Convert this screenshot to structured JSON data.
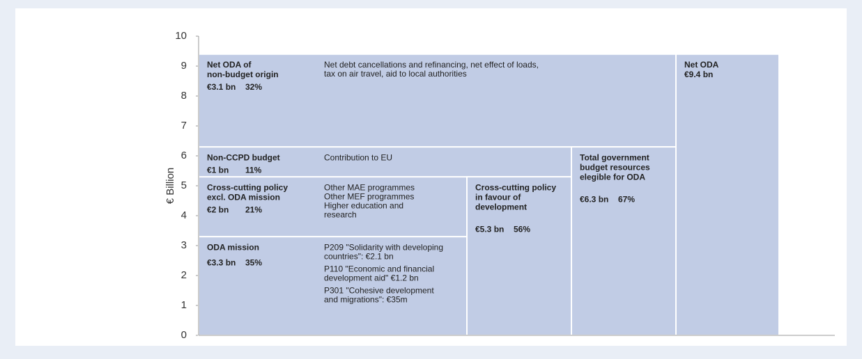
{
  "chart_data": {
    "type": "block",
    "y_label": "€ Billion",
    "ylim": [
      0,
      10
    ],
    "yticks": [
      0,
      1,
      2,
      3,
      4,
      5,
      6,
      7,
      8,
      9,
      10
    ],
    "color": "#c1cce5",
    "blocks": [
      {
        "name_lines": [
          "ODA mission"
        ],
        "value": 3.3,
        "value_label": "€3.3 bn",
        "share": 35,
        "share_label": "35%",
        "notes": [
          "P209 \"Solidarity with developing",
          "countries\": €2.1 bn",
          "P110 \"Economic and financial",
          "development aid\" €1.2 bn",
          "P301 \"Cohesive development",
          "and migrations\": €35m"
        ]
      },
      {
        "name_lines": [
          "Cross-cutting policy",
          "excl. ODA mission"
        ],
        "value": 2,
        "value_label": "€2 bn",
        "share": 21,
        "share_label": "21%",
        "notes": [
          "Other MAE programmes",
          "Other MEF programmes",
          "Higher education and",
          "research"
        ]
      },
      {
        "name_lines": [
          "Non-CCPD budget"
        ],
        "value": 1,
        "value_label": "€1 bn",
        "share": 11,
        "share_label": "11%",
        "notes": [
          "Contribution to EU"
        ]
      },
      {
        "name_lines": [
          "Net ODA of",
          "non-budget origin"
        ],
        "value": 3.1,
        "value_label": "€3.1 bn",
        "share": 32,
        "share_label": "32%",
        "notes": [
          "Net debt cancellations and refinancing, net effect of loads,",
          "tax on air travel, aid to local authorities"
        ]
      },
      {
        "name_lines": [
          "Cross-cutting policy",
          "in favour of",
          "development"
        ],
        "value": 5.3,
        "value_label": "€5.3 bn",
        "share": 56,
        "share_label": "56%"
      },
      {
        "name_lines": [
          "Total government",
          "budget resources",
          "elegible for ODA"
        ],
        "value": 6.3,
        "value_label": "€6.3 bn",
        "share": 67,
        "share_label": "67%"
      },
      {
        "name_lines": [
          "Net ODA"
        ],
        "value": 9.4,
        "value_label": "€9.4 bn"
      }
    ]
  }
}
